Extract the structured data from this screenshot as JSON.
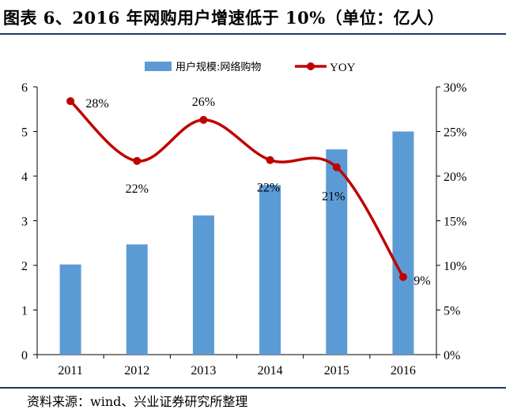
{
  "header": {
    "title": "图表 6、2016 年网购用户增速低于 10%（单位：亿人）"
  },
  "footer": {
    "source": "资料来源：wind、兴业证券研究所整理"
  },
  "colors": {
    "bar": "#5b9bd5",
    "line": "#c00000",
    "rule": "#1f3864"
  },
  "chart_data": {
    "type": "bar",
    "categories": [
      "2011",
      "2012",
      "2013",
      "2014",
      "2015",
      "2016"
    ],
    "series": [
      {
        "name": "用户规模:网络购物",
        "type": "bar",
        "axis": "left",
        "values": [
          2.02,
          2.47,
          3.12,
          3.8,
          4.6,
          5.0
        ]
      },
      {
        "name": "YOY",
        "type": "line",
        "axis": "right",
        "values": [
          28.4,
          21.7,
          26.3,
          21.8,
          21.0,
          8.7
        ],
        "labels": [
          "28%",
          "22%",
          "26%",
          "22%",
          "21%",
          "9%"
        ]
      }
    ],
    "y_left": {
      "min": 0,
      "max": 6,
      "ticks": [
        "0",
        "1",
        "2",
        "3",
        "4",
        "5",
        "6"
      ]
    },
    "y_right": {
      "min": 0,
      "max": 30,
      "ticks": [
        "0%",
        "5%",
        "10%",
        "15%",
        "20%",
        "25%",
        "30%"
      ]
    },
    "legend": {
      "position": "top-center"
    },
    "grid": false
  }
}
